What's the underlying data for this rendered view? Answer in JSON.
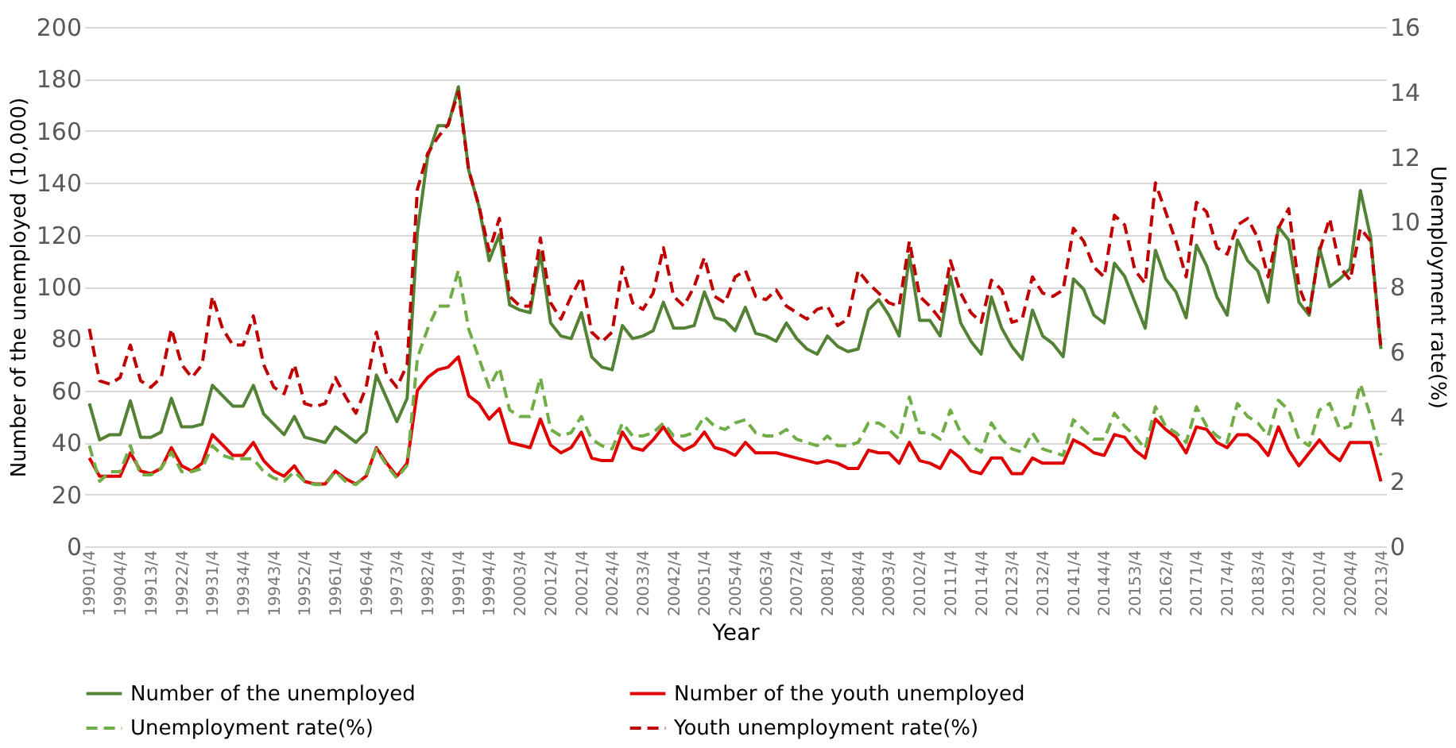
{
  "chart_data": {
    "type": "line",
    "xlabel": "Year",
    "ylabel": "Number of the unemployed (10,000)",
    "y2label": "Unemployment rate(%)",
    "categories": [
      "19901/4",
      null,
      null,
      "19904/4",
      null,
      null,
      "19913/4",
      null,
      null,
      "19922/4",
      null,
      null,
      "19931/4",
      null,
      null,
      "19934/4",
      null,
      null,
      "19943/4",
      null,
      null,
      "19952/4",
      null,
      null,
      "19961/4",
      null,
      null,
      "19964/4",
      null,
      null,
      "19973/4",
      null,
      null,
      "19982/4",
      null,
      null,
      "19991/4",
      null,
      null,
      "19994/4",
      null,
      null,
      "20003/4",
      null,
      null,
      "20012/4",
      null,
      null,
      "20021/4",
      null,
      null,
      "20024/4",
      null,
      null,
      "20033/4",
      null,
      null,
      "20042/4",
      null,
      null,
      "20051/4",
      null,
      null,
      "20054/4",
      null,
      null,
      "20063/4",
      null,
      null,
      "20072/4",
      null,
      null,
      "20081/4",
      null,
      null,
      "20084/4",
      null,
      null,
      "20093/4",
      null,
      null,
      "20102/4",
      null,
      null,
      "20111/4",
      null,
      null,
      "20114/4",
      null,
      null,
      "20123/4",
      null,
      null,
      "20132/4",
      null,
      null,
      "20141/4",
      null,
      null,
      "20144/4",
      null,
      null,
      "20153/4",
      null,
      null,
      "20162/4",
      null,
      null,
      "20171/4",
      null,
      null,
      "20174/4",
      null,
      null,
      "20183/4",
      null,
      null,
      "20192/4",
      null,
      null,
      "20201/4",
      null,
      null,
      "20204/4",
      null,
      null,
      "20213/4"
    ],
    "series": [
      {
        "name": "Number of the unemployed",
        "color": "#548235",
        "line_style": "solid",
        "values": [
          55,
          41,
          43,
          43,
          56,
          42,
          42,
          44,
          57,
          46,
          46,
          47,
          62,
          58,
          54,
          54,
          62,
          51,
          47,
          43,
          50,
          42,
          41,
          40,
          46,
          43,
          40,
          44,
          66,
          57,
          48,
          57,
          121,
          150,
          162,
          162,
          177,
          145,
          131,
          110,
          120,
          93,
          91,
          90,
          113,
          86,
          81,
          80,
          90,
          73,
          69,
          68,
          85,
          80,
          81,
          83,
          94,
          84,
          84,
          85,
          98,
          88,
          87,
          83,
          92,
          82,
          81,
          79,
          86,
          80,
          76,
          74,
          81,
          77,
          75,
          76,
          91,
          95,
          89,
          81,
          112,
          87,
          87,
          81,
          104,
          86,
          79,
          74,
          96,
          84,
          77,
          72,
          91,
          81,
          78,
          73,
          103,
          99,
          89,
          86,
          109,
          104,
          94,
          84,
          114,
          103,
          98,
          88,
          116,
          108,
          96,
          89,
          118,
          110,
          106,
          94,
          123,
          118,
          94,
          89,
          115,
          100,
          103,
          107,
          137,
          119,
          76
        ]
      },
      {
        "name": "Number of the youth unemployed",
        "color": "#e00000",
        "line_style": "solid",
        "values": [
          34,
          27,
          27,
          27,
          36,
          29,
          28,
          30,
          38,
          31,
          29,
          32,
          43,
          39,
          35,
          35,
          40,
          33,
          29,
          27,
          31,
          25,
          24,
          24,
          29,
          26,
          24,
          27,
          38,
          32,
          27,
          32,
          60,
          65,
          68,
          69,
          73,
          58,
          55,
          49,
          53,
          40,
          39,
          38,
          49,
          39,
          36,
          38,
          44,
          34,
          33,
          33,
          44,
          38,
          37,
          41,
          46,
          40,
          37,
          39,
          44,
          38,
          37,
          35,
          40,
          36,
          36,
          36,
          35,
          34,
          33,
          32,
          33,
          32,
          30,
          30,
          37,
          36,
          36,
          32,
          40,
          33,
          32,
          30,
          37,
          34,
          29,
          28,
          34,
          34,
          28,
          28,
          34,
          32,
          32,
          32,
          41,
          39,
          36,
          35,
          43,
          42,
          37,
          34,
          49,
          45,
          42,
          36,
          46,
          45,
          40,
          38,
          43,
          43,
          40,
          35,
          46,
          37,
          31,
          36,
          41,
          36,
          33,
          40,
          40,
          40,
          25
        ]
      },
      {
        "name": "Unemployment rate(%)",
        "color": "#70ad47",
        "line_style": "dashed",
        "axis": "y2",
        "values": [
          3.1,
          2.0,
          2.3,
          2.3,
          3.1,
          2.2,
          2.2,
          2.4,
          2.9,
          2.3,
          2.3,
          2.4,
          3.1,
          2.8,
          2.7,
          2.7,
          2.7,
          2.3,
          2.1,
          2.0,
          2.3,
          2.0,
          1.9,
          1.9,
          2.3,
          2.0,
          1.9,
          2.2,
          3.0,
          2.5,
          2.1,
          2.5,
          5.8,
          6.7,
          7.4,
          7.4,
          8.5,
          6.7,
          5.8,
          4.9,
          5.5,
          4.2,
          4.0,
          4.0,
          5.2,
          3.6,
          3.4,
          3.5,
          4.0,
          3.3,
          3.1,
          3.0,
          3.8,
          3.4,
          3.4,
          3.5,
          3.8,
          3.4,
          3.4,
          3.5,
          4.0,
          3.7,
          3.6,
          3.8,
          3.9,
          3.5,
          3.4,
          3.4,
          3.6,
          3.3,
          3.2,
          3.1,
          3.4,
          3.1,
          3.1,
          3.2,
          3.8,
          3.8,
          3.6,
          3.3,
          4.6,
          3.5,
          3.5,
          3.3,
          4.2,
          3.5,
          3.1,
          2.9,
          3.8,
          3.3,
          3.0,
          2.9,
          3.5,
          3.0,
          2.9,
          2.8,
          3.9,
          3.6,
          3.3,
          3.3,
          4.1,
          3.7,
          3.4,
          3.0,
          4.3,
          3.7,
          3.5,
          3.2,
          4.3,
          3.7,
          3.4,
          3.2,
          4.4,
          4.0,
          3.8,
          3.4,
          4.5,
          4.2,
          3.3,
          3.1,
          4.2,
          4.4,
          3.6,
          3.7,
          5.0,
          4.0,
          2.8
        ]
      },
      {
        "name": "Youth unemployment rate(%)",
        "color": "#c00000",
        "line_style": "dashed",
        "axis": "y2",
        "values": [
          6.7,
          5.1,
          5.0,
          5.2,
          6.2,
          5.1,
          4.9,
          5.2,
          6.7,
          5.6,
          5.2,
          5.6,
          7.7,
          6.7,
          6.2,
          6.2,
          7.1,
          5.6,
          4.9,
          4.7,
          5.6,
          4.4,
          4.3,
          4.4,
          5.2,
          4.6,
          4.1,
          4.9,
          6.6,
          5.3,
          4.9,
          5.6,
          11.0,
          12.1,
          12.6,
          13.0,
          14.0,
          11.6,
          10.5,
          9.1,
          10.1,
          7.7,
          7.4,
          7.4,
          9.5,
          7.5,
          7.0,
          7.7,
          8.3,
          6.6,
          6.3,
          6.6,
          8.6,
          7.5,
          7.3,
          7.8,
          9.2,
          7.7,
          7.4,
          8.0,
          8.9,
          7.7,
          7.5,
          8.3,
          8.5,
          7.7,
          7.6,
          7.9,
          7.4,
          7.2,
          7.0,
          7.3,
          7.4,
          6.8,
          7.0,
          8.5,
          8.1,
          7.8,
          7.5,
          7.4,
          9.4,
          7.7,
          7.4,
          7.0,
          8.8,
          7.8,
          7.2,
          6.9,
          8.2,
          7.9,
          6.9,
          7.0,
          8.3,
          7.8,
          7.7,
          7.9,
          9.8,
          9.4,
          8.6,
          8.3,
          10.2,
          9.9,
          8.5,
          8.1,
          11.2,
          10.3,
          9.4,
          8.3,
          10.6,
          10.3,
          9.2,
          9.0,
          9.9,
          10.1,
          9.5,
          8.3,
          9.8,
          10.4,
          8.0,
          7.2,
          9.1,
          10.1,
          8.6,
          8.2,
          9.8,
          9.4,
          6.1
        ]
      }
    ],
    "ylim": [
      0,
      200
    ],
    "yticks": [
      0,
      20,
      40,
      60,
      80,
      100,
      120,
      140,
      160,
      180,
      200
    ],
    "y2lim": [
      0,
      16
    ],
    "y2ticks": [
      0,
      2,
      4,
      6,
      8,
      10,
      12,
      14,
      16
    ],
    "grid": "y",
    "legend": "bottom"
  }
}
